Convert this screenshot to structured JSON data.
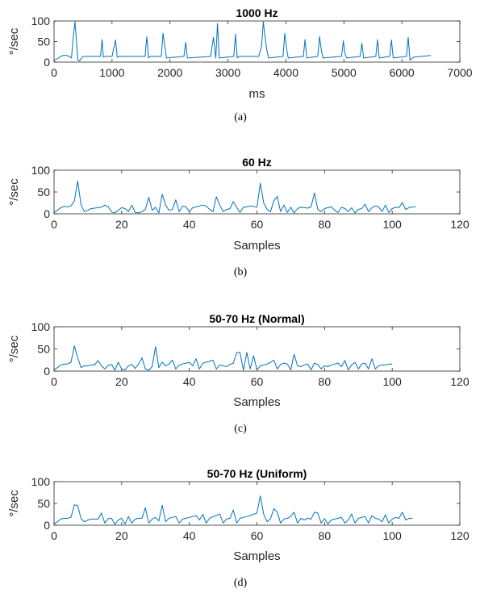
{
  "chart_data": [
    {
      "type": "line",
      "panel": "a",
      "caption": "(a)",
      "title": "1000 Hz",
      "xlabel": "ms",
      "ylabel": "°/sec",
      "xlim": [
        0,
        7000
      ],
      "ylim": [
        0,
        100
      ],
      "xticks": [
        0,
        1000,
        2000,
        3000,
        4000,
        5000,
        6000,
        7000
      ],
      "yticks": [
        0,
        50,
        100
      ],
      "color": "#0072BD",
      "series": [
        {
          "x": [
            0,
            150,
            230,
            300,
            330,
            360,
            385,
            410,
            440,
            500,
            800,
            830,
            850,
            880,
            1000,
            1060,
            1090,
            1120,
            1400,
            1570,
            1600,
            1630,
            1660,
            1850,
            1880,
            1910,
            1940,
            2240,
            2270,
            2300,
            2700,
            2750,
            2790,
            2820,
            2850,
            3100,
            3130,
            3160,
            3190,
            3530,
            3580,
            3610,
            3640,
            3670,
            3700,
            3950,
            3980,
            4010,
            4040,
            4300,
            4330,
            4360,
            4550,
            4580,
            4610,
            4640,
            4960,
            4990,
            5020,
            5050,
            5280,
            5310,
            5340,
            5550,
            5580,
            5610,
            5790,
            5820,
            5850,
            6080,
            6110,
            6140,
            6200,
            6500
          ],
          "y": [
            4,
            16,
            16,
            10,
            60,
            98,
            55,
            5,
            3,
            14,
            14,
            55,
            12,
            14,
            14,
            54,
            12,
            14,
            14,
            14,
            62,
            10,
            14,
            14,
            70,
            40,
            10,
            14,
            48,
            10,
            14,
            60,
            10,
            94,
            10,
            14,
            68,
            10,
            14,
            14,
            38,
            98,
            60,
            30,
            10,
            14,
            70,
            35,
            10,
            14,
            55,
            10,
            14,
            62,
            30,
            10,
            14,
            52,
            20,
            10,
            14,
            46,
            10,
            14,
            55,
            10,
            14,
            54,
            10,
            14,
            60,
            5,
            12,
            16
          ]
        }
      ]
    },
    {
      "type": "line",
      "panel": "b",
      "caption": "(b)",
      "title": "60 Hz",
      "xlabel": "Samples",
      "ylabel": "°/sec",
      "xlim": [
        0,
        120
      ],
      "ylim": [
        0,
        100
      ],
      "xticks": [
        0,
        20,
        40,
        60,
        80,
        100,
        120
      ],
      "yticks": [
        0,
        50,
        100
      ],
      "color": "#0072BD",
      "series": [
        {
          "x": [
            0,
            1,
            2,
            3,
            4,
            5,
            6,
            7,
            8,
            9,
            10,
            11,
            12,
            13,
            14,
            15,
            16,
            17,
            18,
            19,
            20,
            21,
            22,
            23,
            24,
            25,
            26,
            27,
            28,
            29,
            30,
            31,
            32,
            33,
            34,
            35,
            36,
            37,
            38,
            39,
            40,
            41,
            42,
            43,
            44,
            45,
            46,
            47,
            48,
            49,
            50,
            51,
            52,
            53,
            54,
            55,
            56,
            57,
            58,
            59,
            60,
            61,
            62,
            63,
            64,
            65,
            66,
            67,
            68,
            69,
            70,
            71,
            72,
            73,
            74,
            75,
            76,
            77,
            78,
            79,
            80,
            81,
            82,
            83,
            84,
            85,
            86,
            87,
            88,
            89,
            90,
            91,
            92,
            93,
            94,
            95,
            96,
            97,
            98,
            99,
            100,
            101,
            102,
            103,
            104,
            105,
            106,
            107
          ],
          "y": [
            3,
            8,
            14,
            17,
            16,
            18,
            30,
            75,
            20,
            5,
            8,
            12,
            13,
            14,
            15,
            20,
            16,
            4,
            2,
            8,
            14,
            12,
            5,
            20,
            3,
            2,
            5,
            10,
            38,
            8,
            15,
            2,
            45,
            20,
            8,
            10,
            32,
            5,
            18,
            16,
            5,
            14,
            16,
            18,
            20,
            18,
            10,
            5,
            39,
            20,
            5,
            10,
            12,
            28,
            15,
            3,
            15,
            16,
            18,
            17,
            15,
            70,
            25,
            10,
            5,
            30,
            40,
            5,
            20,
            3,
            15,
            2,
            12,
            15,
            14,
            13,
            16,
            48,
            10,
            5,
            12,
            14,
            16,
            8,
            3,
            15,
            12,
            5,
            14,
            2,
            10,
            12,
            22,
            5,
            14,
            18,
            16,
            5,
            20,
            3,
            12,
            15,
            14,
            26,
            10,
            14,
            16,
            16
          ]
        }
      ]
    },
    {
      "type": "line",
      "panel": "c",
      "caption": "(c)",
      "title": "50-70 Hz (Normal)",
      "xlabel": "Samples",
      "ylabel": "°/sec",
      "xlim": [
        0,
        120
      ],
      "ylim": [
        0,
        100
      ],
      "xticks": [
        0,
        20,
        40,
        60,
        80,
        100,
        120
      ],
      "yticks": [
        0,
        50,
        100
      ],
      "color": "#0072BD",
      "series": [
        {
          "x": [
            0,
            1,
            2,
            3,
            4,
            5,
            6,
            7,
            8,
            9,
            10,
            11,
            12,
            13,
            14,
            15,
            16,
            17,
            18,
            19,
            20,
            21,
            22,
            23,
            24,
            25,
            26,
            27,
            28,
            29,
            30,
            31,
            32,
            33,
            34,
            35,
            36,
            37,
            38,
            39,
            40,
            41,
            42,
            43,
            44,
            45,
            46,
            47,
            48,
            49,
            50,
            51,
            52,
            53,
            54,
            55,
            56,
            57,
            58,
            59,
            60,
            61,
            62,
            63,
            64,
            65,
            66,
            67,
            68,
            69,
            70,
            71,
            72,
            73,
            74,
            75,
            76,
            77,
            78,
            79,
            80,
            81,
            82,
            83,
            84,
            85,
            86,
            87,
            88,
            89,
            90,
            91,
            92,
            93,
            94,
            95,
            96,
            97,
            98,
            99,
            100
          ],
          "y": [
            3,
            8,
            14,
            16,
            16,
            20,
            57,
            30,
            8,
            12,
            12,
            14,
            14,
            24,
            12,
            5,
            13,
            15,
            2,
            20,
            5,
            3,
            12,
            15,
            6,
            16,
            30,
            5,
            2,
            10,
            55,
            8,
            20,
            12,
            16,
            25,
            5,
            14,
            16,
            18,
            20,
            12,
            28,
            5,
            18,
            20,
            22,
            25,
            5,
            14,
            12,
            10,
            15,
            18,
            42,
            42,
            2,
            42,
            5,
            35,
            3,
            12,
            14,
            16,
            20,
            25,
            5,
            15,
            18,
            16,
            3,
            38,
            12,
            10,
            14,
            16,
            3,
            18,
            15,
            5,
            12,
            10,
            14,
            16,
            18,
            10,
            24,
            3,
            14,
            20,
            5,
            16,
            18,
            5,
            28,
            5,
            12,
            14,
            14,
            16,
            16
          ]
        }
      ]
    },
    {
      "type": "line",
      "panel": "d",
      "caption": "(d)",
      "title": "50-70 Hz (Uniform)",
      "xlabel": "Samples",
      "ylabel": "°/sec",
      "xlim": [
        0,
        120
      ],
      "ylim": [
        0,
        100
      ],
      "xticks": [
        0,
        20,
        40,
        60,
        80,
        100,
        120
      ],
      "yticks": [
        0,
        50,
        100
      ],
      "color": "#0072BD",
      "series": [
        {
          "x": [
            0,
            1,
            2,
            3,
            4,
            5,
            6,
            7,
            8,
            9,
            10,
            11,
            12,
            13,
            14,
            15,
            16,
            17,
            18,
            19,
            20,
            21,
            22,
            23,
            24,
            25,
            26,
            27,
            28,
            29,
            30,
            31,
            32,
            33,
            34,
            35,
            36,
            37,
            38,
            39,
            40,
            41,
            42,
            43,
            44,
            45,
            46,
            47,
            48,
            49,
            50,
            51,
            52,
            53,
            54,
            55,
            56,
            57,
            58,
            59,
            60,
            61,
            62,
            63,
            64,
            65,
            66,
            67,
            68,
            69,
            70,
            71,
            72,
            73,
            74,
            75,
            76,
            77,
            78,
            79,
            80,
            81,
            82,
            83,
            84,
            85,
            86,
            87,
            88,
            89,
            90,
            91,
            92,
            93,
            94,
            95,
            96,
            97,
            98,
            99,
            100,
            101,
            102,
            103,
            104,
            105,
            106
          ],
          "y": [
            3,
            8,
            14,
            16,
            16,
            18,
            47,
            45,
            15,
            8,
            12,
            14,
            14,
            14,
            28,
            5,
            15,
            16,
            2,
            12,
            16,
            3,
            20,
            5,
            14,
            16,
            16,
            40,
            5,
            14,
            18,
            10,
            46,
            8,
            16,
            18,
            20,
            5,
            14,
            16,
            18,
            20,
            22,
            12,
            25,
            5,
            16,
            20,
            22,
            26,
            5,
            14,
            16,
            35,
            5,
            16,
            18,
            20,
            22,
            25,
            28,
            67,
            25,
            8,
            15,
            38,
            30,
            5,
            14,
            16,
            20,
            30,
            5,
            16,
            12,
            16,
            14,
            30,
            28,
            5,
            15,
            3,
            12,
            14,
            16,
            18,
            5,
            12,
            26,
            5,
            16,
            18,
            20,
            5,
            22,
            16,
            14,
            8,
            24,
            5,
            14,
            18,
            16,
            30,
            12,
            16,
            16
          ]
        }
      ]
    }
  ]
}
